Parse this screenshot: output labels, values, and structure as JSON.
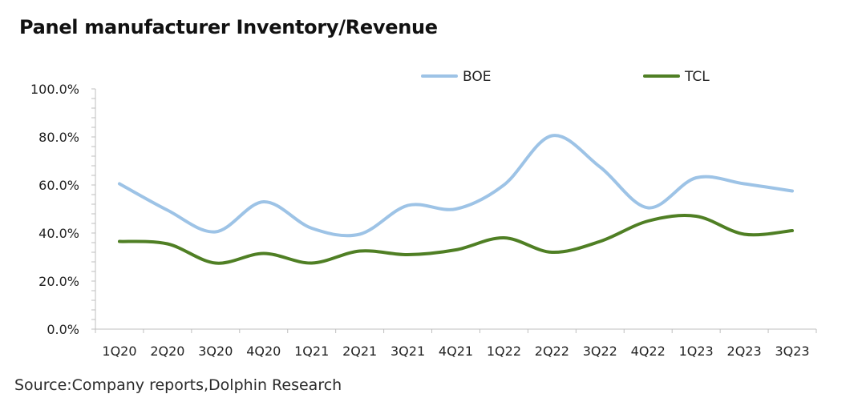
{
  "title": "Panel manufacturer Inventory/Revenue",
  "source": "Source:Company reports,Dolphin Research",
  "chart_data": {
    "type": "line",
    "title": "Panel manufacturer Inventory/Revenue",
    "xlabel": "",
    "ylabel": "",
    "categories": [
      "1Q20",
      "2Q20",
      "3Q20",
      "4Q20",
      "1Q21",
      "2Q21",
      "3Q21",
      "4Q21",
      "1Q22",
      "2Q22",
      "3Q22",
      "4Q22",
      "1Q23",
      "2Q23",
      "3Q23"
    ],
    "y_ticks": [
      "0.0%",
      "20.0%",
      "40.0%",
      "60.0%",
      "80.0%",
      "100.0%"
    ],
    "ylim": [
      0,
      100
    ],
    "grid": false,
    "legend_position": "top",
    "series": [
      {
        "name": "BOE",
        "color": "#9dc3e6",
        "values": [
          60.5,
          49.5,
          40.5,
          53,
          42,
          39.5,
          51.5,
          50,
          60,
          80.5,
          67.5,
          50.5,
          63,
          60.5,
          57.5
        ]
      },
      {
        "name": "TCL",
        "color": "#4f7f24",
        "values": [
          36.5,
          35.5,
          27.5,
          31.5,
          27.5,
          32.5,
          31,
          33,
          38,
          32,
          36.5,
          45,
          47,
          39.5,
          41
        ]
      }
    ]
  }
}
